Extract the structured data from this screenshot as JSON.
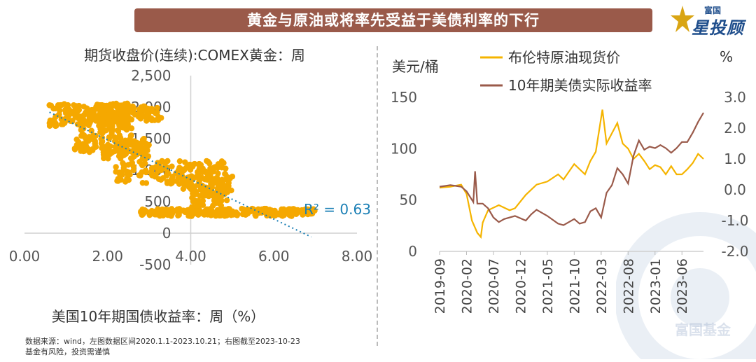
{
  "banner": {
    "title": "黄金与原油或将率先受益于美债利率的下行"
  },
  "logo": {
    "small_text": "富国",
    "big_text": "星投顾",
    "watermark_text": "富国基金"
  },
  "colors": {
    "banner": "#9a5a4a",
    "gold": "#f5a800",
    "brent": "#f5b400",
    "real_yield": "#9a5a4a",
    "trend": "#1a7fb5",
    "r2": "#1a7fb5"
  },
  "footnote": {
    "line1": "数据来源：wind，左图数据区间2020.1.1-2023.10.21；右图截至2023-10-23",
    "line2": "基金有风险，投资需谨慎"
  },
  "chart_data": [
    {
      "type": "scatter",
      "title": "期货收盘价(连续):COMEX黄金：周",
      "xlabel": "美国10年期国债收益率：周（%）",
      "ylabel": "",
      "xlim": [
        0,
        8
      ],
      "ylim": [
        -500,
        2500
      ],
      "x_ticks": [
        "0.00",
        "2.00",
        "4.00",
        "6.00",
        "8.00"
      ],
      "y_ticks": [
        "-500",
        "0",
        "500",
        "1,000",
        "1,500",
        "2,000",
        "2,500"
      ],
      "trendline": {
        "style": "dotted",
        "from": [
          0.6,
          1920
        ],
        "to": [
          6.9,
          -60
        ]
      },
      "annotation": "R² = 0.63",
      "grid": false,
      "clusters": [
        {
          "x_range": [
            0.6,
            2.5
          ],
          "y_range": [
            1700,
            2060
          ],
          "count": 170
        },
        {
          "x_range": [
            1.5,
            3.3
          ],
          "y_range": [
            1780,
            2020
          ],
          "count": 90
        },
        {
          "x_range": [
            1.3,
            2.6
          ],
          "y_range": [
            1450,
            1780
          ],
          "count": 60
        },
        {
          "x_range": [
            1.2,
            3.0
          ],
          "y_range": [
            1280,
            1500
          ],
          "count": 90
        },
        {
          "x_range": [
            1.9,
            3.0
          ],
          "y_range": [
            1180,
            1380
          ],
          "count": 60
        },
        {
          "x_range": [
            2.2,
            4.9
          ],
          "y_range": [
            780,
            1150
          ],
          "count": 150
        },
        {
          "x_range": [
            3.8,
            5.0
          ],
          "y_range": [
            650,
            900
          ],
          "count": 60
        },
        {
          "x_range": [
            4.0,
            4.9
          ],
          "y_range": [
            380,
            700
          ],
          "count": 60
        },
        {
          "x_range": [
            2.8,
            7.0
          ],
          "y_range": [
            270,
            390
          ],
          "count": 260
        }
      ]
    },
    {
      "type": "line",
      "left_axis_title": "美元/桶",
      "right_axis_title": "%",
      "ylim_left": [
        0,
        150
      ],
      "ylim_right": [
        -2.0,
        3.0
      ],
      "y_ticks_left": [
        "0",
        "50",
        "100",
        "150"
      ],
      "y_ticks_right": [
        "-2.0",
        "-1.0",
        "0.0",
        "1.0",
        "2.0",
        "3.0"
      ],
      "x_ticks": [
        "2019-09",
        "2020-02",
        "2020-07",
        "2020-12",
        "2021-05",
        "2021-10",
        "2022-03",
        "2022-08",
        "2023-01",
        "2023-06"
      ],
      "x_range": [
        "2019-09",
        "2023-10"
      ],
      "grid": false,
      "legend_position": "top",
      "series": [
        {
          "name": "布伦特原油现货价",
          "axis": "left",
          "points": [
            [
              "2019-09",
              62
            ],
            [
              "2019-11",
              63
            ],
            [
              "2020-01",
              65
            ],
            [
              "2020-02",
              56
            ],
            [
              "2020-03",
              30
            ],
            [
              "2020-04",
              18
            ],
            [
              "2020-04-21",
              14
            ],
            [
              "2020-05",
              28
            ],
            [
              "2020-06",
              40
            ],
            [
              "2020-08",
              45
            ],
            [
              "2020-10",
              40
            ],
            [
              "2020-11",
              42
            ],
            [
              "2021-01",
              55
            ],
            [
              "2021-03",
              65
            ],
            [
              "2021-05",
              68
            ],
            [
              "2021-07",
              75
            ],
            [
              "2021-08",
              70
            ],
            [
              "2021-10",
              85
            ],
            [
              "2021-12",
              75
            ],
            [
              "2022-01",
              88
            ],
            [
              "2022-02",
              97
            ],
            [
              "2022-03-08",
              138
            ],
            [
              "2022-04",
              105
            ],
            [
              "2022-05",
              115
            ],
            [
              "2022-06",
              125
            ],
            [
              "2022-07",
              105
            ],
            [
              "2022-08",
              100
            ],
            [
              "2022-09",
              90
            ],
            [
              "2022-10",
              95
            ],
            [
              "2022-11",
              88
            ],
            [
              "2022-12",
              80
            ],
            [
              "2023-01",
              84
            ],
            [
              "2023-02",
              82
            ],
            [
              "2023-03",
              75
            ],
            [
              "2023-04",
              83
            ],
            [
              "2023-05",
              75
            ],
            [
              "2023-06",
              75
            ],
            [
              "2023-07",
              80
            ],
            [
              "2023-08",
              86
            ],
            [
              "2023-09",
              95
            ],
            [
              "2023-10",
              90
            ]
          ]
        },
        {
          "name": "10年期美债实际收益率",
          "axis": "right",
          "points": [
            [
              "2019-09",
              0.1
            ],
            [
              "2019-11",
              0.15
            ],
            [
              "2020-01",
              0.1
            ],
            [
              "2020-02",
              -0.05
            ],
            [
              "2020-03-09",
              -0.4
            ],
            [
              "2020-03-19",
              0.6
            ],
            [
              "2020-04",
              -0.45
            ],
            [
              "2020-05",
              -0.45
            ],
            [
              "2020-06",
              -0.6
            ],
            [
              "2020-07",
              -0.9
            ],
            [
              "2020-08",
              -1.05
            ],
            [
              "2020-09",
              -0.95
            ],
            [
              "2020-11",
              -0.85
            ],
            [
              "2021-01",
              -1.0
            ],
            [
              "2021-02",
              -0.8
            ],
            [
              "2021-03",
              -0.65
            ],
            [
              "2021-05",
              -0.85
            ],
            [
              "2021-07",
              -1.1
            ],
            [
              "2021-08",
              -1.15
            ],
            [
              "2021-10",
              -0.95
            ],
            [
              "2021-11",
              -1.1
            ],
            [
              "2021-12",
              -1.05
            ],
            [
              "2022-01",
              -0.7
            ],
            [
              "2022-02",
              -0.6
            ],
            [
              "2022-03",
              -0.9
            ],
            [
              "2022-04",
              -0.1
            ],
            [
              "2022-05",
              0.15
            ],
            [
              "2022-06",
              0.7
            ],
            [
              "2022-07",
              0.5
            ],
            [
              "2022-08",
              0.2
            ],
            [
              "2022-09",
              1.1
            ],
            [
              "2022-10",
              1.6
            ],
            [
              "2022-11",
              1.3
            ],
            [
              "2022-12",
              1.4
            ],
            [
              "2023-01",
              1.35
            ],
            [
              "2023-02",
              1.45
            ],
            [
              "2023-03",
              1.35
            ],
            [
              "2023-04",
              1.2
            ],
            [
              "2023-05",
              1.35
            ],
            [
              "2023-06",
              1.55
            ],
            [
              "2023-07",
              1.55
            ],
            [
              "2023-08",
              1.85
            ],
            [
              "2023-09",
              2.2
            ],
            [
              "2023-10",
              2.5
            ]
          ]
        }
      ]
    }
  ]
}
